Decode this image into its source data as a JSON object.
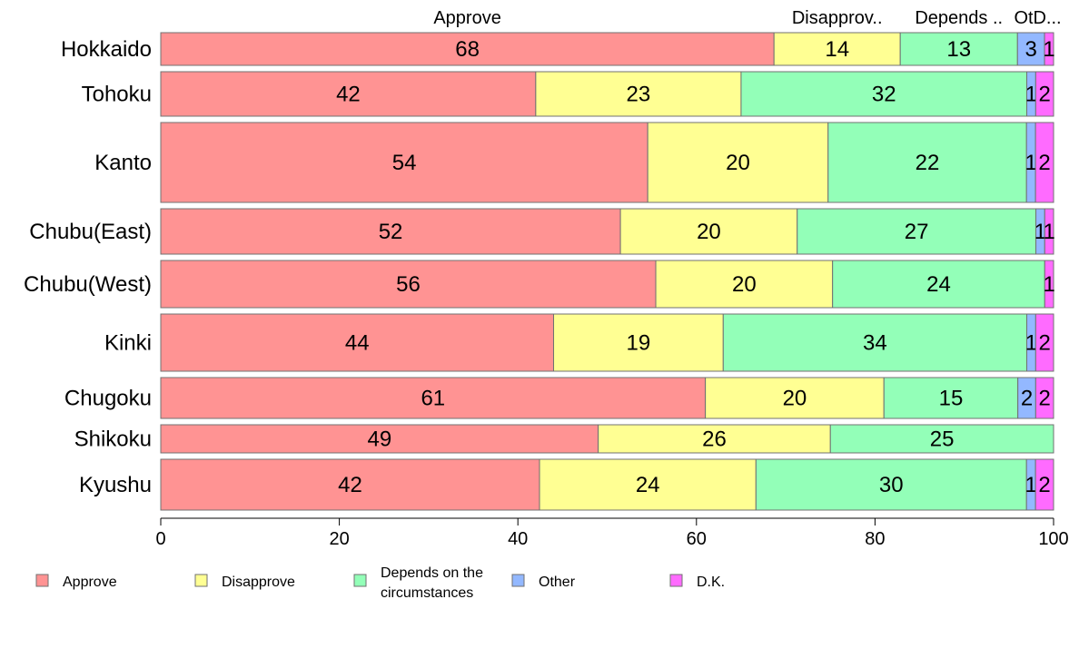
{
  "chart_data": {
    "type": "bar",
    "orientation": "horizontal",
    "stacked": true,
    "categories": [
      "Hokkaido",
      "Tohoku",
      "Kanto",
      "Chubu(East)",
      "Chubu(West)",
      "Kinki",
      "Chugoku",
      "Shikoku",
      "Kyushu"
    ],
    "series": [
      {
        "name": "Approve",
        "color": "#ff9393",
        "values": [
          68,
          42,
          54,
          52,
          56,
          44,
          61,
          49,
          42
        ]
      },
      {
        "name": "Disapprove",
        "color": "#ffff93",
        "values": [
          14,
          23,
          20,
          20,
          20,
          19,
          20,
          26,
          24
        ]
      },
      {
        "name": "Depends on the circumstances",
        "color": "#93ffb8",
        "values": [
          13,
          32,
          22,
          27,
          24,
          34,
          15,
          25,
          30
        ]
      },
      {
        "name": "Other",
        "color": "#93b8ff",
        "values": [
          3,
          1,
          1,
          1,
          0,
          1,
          2,
          0,
          1
        ]
      },
      {
        "name": "D.K.",
        "color": "#ff6bff",
        "values": [
          1,
          2,
          2,
          1,
          1,
          2,
          2,
          0,
          2
        ]
      }
    ],
    "bar_widths": [
      36,
      49,
      88,
      50,
      52,
      63,
      45,
      31,
      56
    ],
    "top_labels": [
      "Approve",
      "Disapprov..",
      "Depends ..",
      "Ot",
      "D..."
    ],
    "legend_lines": [
      [
        "Approve"
      ],
      [
        "Disapprove"
      ],
      [
        "Depends on the",
        "circumstances"
      ],
      [
        "Other"
      ],
      [
        "D.K."
      ]
    ],
    "xlim": [
      0,
      100
    ],
    "xticks": [
      "0",
      "20",
      "40",
      "60",
      "80",
      "100"
    ],
    "legend_position": "bottom",
    "grid": false
  }
}
